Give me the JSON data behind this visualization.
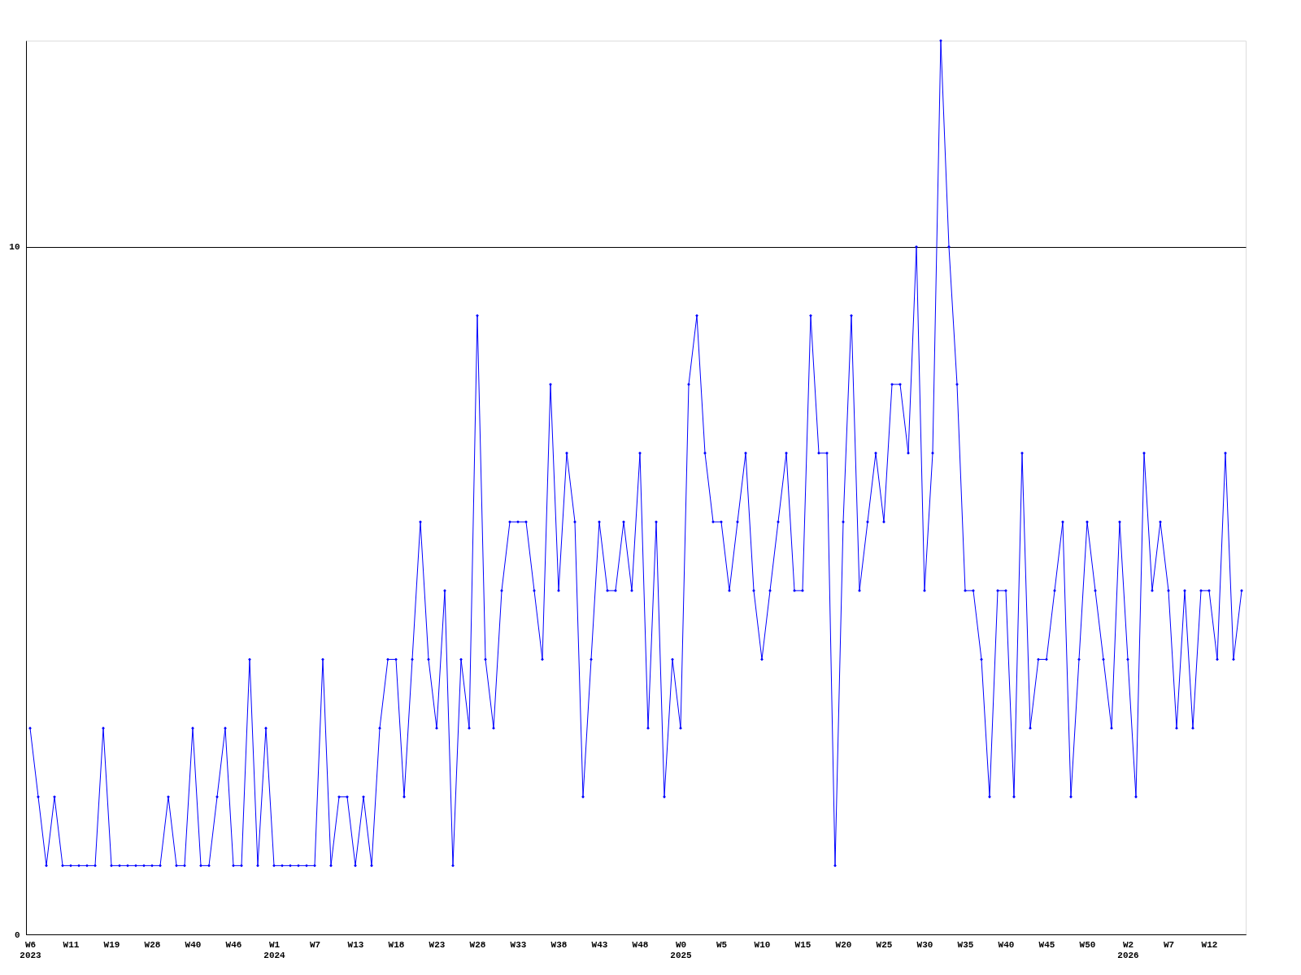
{
  "chart_data": {
    "type": "line",
    "categories": [
      "W6\n2023",
      null,
      null,
      null,
      null,
      "W11",
      null,
      null,
      null,
      null,
      "W19",
      null,
      null,
      null,
      null,
      "W28",
      null,
      null,
      null,
      null,
      "W40",
      null,
      null,
      null,
      null,
      "W46",
      null,
      null,
      null,
      null,
      "W1\n2024",
      null,
      null,
      null,
      null,
      "W7",
      null,
      null,
      null,
      null,
      "W13",
      null,
      null,
      null,
      null,
      "W18",
      null,
      null,
      null,
      null,
      "W23",
      null,
      null,
      null,
      null,
      "W28",
      null,
      null,
      null,
      null,
      "W33",
      null,
      null,
      null,
      null,
      "W38",
      null,
      null,
      null,
      null,
      "W43",
      null,
      null,
      null,
      null,
      "W48",
      null,
      null,
      null,
      null,
      "W0\n2025",
      null,
      null,
      null,
      null,
      "W5",
      null,
      null,
      null,
      null,
      "W10",
      null,
      null,
      null,
      null,
      "W15",
      null,
      null,
      null,
      null,
      "W20",
      null,
      null,
      null,
      null,
      "W25",
      null,
      null,
      null,
      null,
      "W30",
      null,
      null,
      null,
      null,
      "W35",
      null,
      null,
      null,
      null,
      "W40",
      null,
      null,
      null,
      null,
      "W45",
      null,
      null,
      null,
      null,
      "W50",
      null,
      null,
      null,
      null,
      "W2\n2026",
      null,
      null,
      null,
      null,
      "W7",
      null,
      null,
      null,
      null,
      "W12",
      null,
      null,
      null,
      null
    ],
    "series": [
      {
        "color": "#0000ff",
        "values": [
          3,
          2,
          1,
          2,
          1,
          1,
          1,
          1,
          1,
          3,
          1,
          1,
          1,
          1,
          1,
          1,
          1,
          2,
          1,
          1,
          3,
          1,
          1,
          2,
          3,
          1,
          1,
          4,
          1,
          3,
          1,
          1,
          1,
          1,
          1,
          1,
          4,
          1,
          2,
          2,
          1,
          2,
          1,
          3,
          4,
          4,
          2,
          4,
          6,
          4,
          3,
          5,
          1,
          4,
          3,
          9,
          4,
          3,
          5,
          6,
          6,
          6,
          5,
          4,
          8,
          5,
          7,
          6,
          2,
          4,
          6,
          5,
          5,
          6,
          5,
          7,
          3,
          6,
          2,
          4,
          3,
          8,
          9,
          7,
          6,
          6,
          5,
          6,
          7,
          5,
          4,
          5,
          6,
          7,
          5,
          5,
          9,
          7,
          7,
          1,
          6,
          9,
          5,
          6,
          7,
          6,
          8,
          8,
          7,
          10,
          5,
          7,
          13,
          10,
          8,
          5,
          5,
          4,
          2,
          5,
          5,
          2,
          7,
          3,
          4,
          4,
          5,
          6,
          2,
          4,
          6,
          5,
          4,
          3,
          6,
          4,
          2,
          7,
          5,
          6,
          5,
          3,
          5,
          3,
          5,
          5,
          4,
          7,
          4,
          5
        ]
      }
    ],
    "ylim": [
      0,
      13
    ],
    "yticks": [
      0,
      10
    ],
    "grid": "y",
    "marker": "diamond",
    "line_style": "solid"
  }
}
